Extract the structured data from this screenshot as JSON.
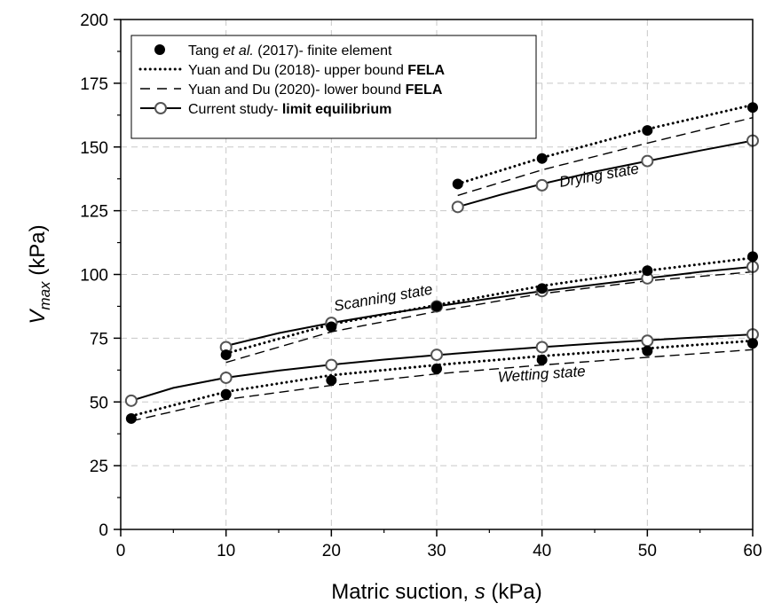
{
  "chart_data": {
    "type": "scatter",
    "xlabel": {
      "main": "Matric suction, ",
      "var": "s",
      "unit": " (kPa)"
    },
    "ylabel": {
      "main": "V",
      "sub": "max",
      "unit": " (kPa)"
    },
    "xlim": [
      0,
      60
    ],
    "ylim": [
      0,
      200
    ],
    "x_ticks": [
      "0",
      "10",
      "20",
      "30",
      "40",
      "50",
      "60"
    ],
    "x_tick_values": [
      0,
      10,
      20,
      30,
      40,
      50,
      60
    ],
    "y_ticks": [
      "0",
      "25",
      "50",
      "75",
      "100",
      "125",
      "150",
      "175",
      "200"
    ],
    "y_tick_values": [
      0,
      25,
      50,
      75,
      100,
      125,
      150,
      175,
      200
    ],
    "grid": true,
    "legend_position": "top-left",
    "legend": [
      {
        "style": "filled-marker",
        "parts": [
          {
            "t": "Tang "
          },
          {
            "t": "et al.",
            "i": true
          },
          {
            "t": " (2017)- finite element"
          }
        ]
      },
      {
        "style": "dotted-line",
        "parts": [
          {
            "t": "Yuan and Du (2018)- upper bound "
          },
          {
            "t": "FELA",
            "b": true
          }
        ]
      },
      {
        "style": "dashed-line",
        "parts": [
          {
            "t": "Yuan and Du (2020)- lower bound "
          },
          {
            "t": "FELA",
            "b": true
          }
        ]
      },
      {
        "style": "solid-line-open-marker",
        "parts": [
          {
            "t": "Current study- "
          },
          {
            "t": "limit equilibrium",
            "b": true
          }
        ]
      }
    ],
    "annotations": [
      {
        "text": "Drying state",
        "x": 45.5,
        "y": 137,
        "rotate": -10
      },
      {
        "text": "Scanning state",
        "x": 25,
        "y": 89,
        "rotate": -10
      },
      {
        "text": "Wetting state",
        "x": 40,
        "y": 59,
        "rotate": -4
      }
    ],
    "groups": [
      {
        "name": "Drying state",
        "tang": {
          "x": [
            32,
            40,
            50,
            60
          ],
          "y": [
            135.5,
            145.5,
            156.5,
            165.5
          ]
        },
        "upper": {
          "x": [
            32,
            40,
            50,
            60
          ],
          "y": [
            135.5,
            145.8,
            157,
            166.5
          ]
        },
        "lower": {
          "x": [
            32,
            40,
            50,
            60
          ],
          "y": [
            131,
            141,
            151.5,
            161.5
          ]
        },
        "current_markers": {
          "x": [
            32,
            40,
            50,
            60
          ],
          "y": [
            126.5,
            135,
            144.5,
            152.5
          ]
        },
        "current_line": {
          "x": [
            32,
            36,
            40,
            45,
            50,
            55,
            60
          ],
          "y": [
            126.5,
            131.2,
            135.5,
            140.3,
            144.5,
            148.6,
            152.5
          ]
        }
      },
      {
        "name": "Scanning state",
        "tang": {
          "x": [
            10,
            20,
            30,
            40,
            50,
            60
          ],
          "y": [
            68.5,
            79.5,
            87.5,
            94.5,
            101.5,
            107
          ]
        },
        "upper": {
          "x": [
            10,
            20,
            30,
            40,
            50,
            60
          ],
          "y": [
            69,
            80.5,
            88,
            95.5,
            101.5,
            106.5
          ]
        },
        "lower": {
          "x": [
            10,
            20,
            30,
            40,
            50,
            60
          ],
          "y": [
            65.5,
            77.5,
            85.5,
            92.5,
            97.5,
            101
          ]
        },
        "current_markers": {
          "x": [
            10,
            20,
            30,
            40,
            50,
            60
          ],
          "y": [
            71.5,
            81,
            87.5,
            93.5,
            98.5,
            103
          ]
        },
        "current_line": {
          "x": [
            10,
            15,
            20,
            25,
            30,
            35,
            40,
            45,
            50,
            55,
            60
          ],
          "y": [
            72,
            77,
            81,
            84.5,
            87.5,
            90.5,
            93.5,
            96,
            98.5,
            101,
            103
          ]
        }
      },
      {
        "name": "Wetting state",
        "tang": {
          "x": [
            1,
            10,
            20,
            30,
            40,
            50,
            60
          ],
          "y": [
            43.5,
            53,
            58.5,
            63,
            66.5,
            70,
            73
          ]
        },
        "upper": {
          "x": [
            1,
            10,
            20,
            30,
            40,
            50,
            60
          ],
          "y": [
            44.5,
            54,
            60.5,
            64.5,
            68,
            71,
            74
          ]
        },
        "lower": {
          "x": [
            1,
            10,
            20,
            30,
            40,
            50,
            60
          ],
          "y": [
            42.5,
            51,
            56.5,
            61,
            64.5,
            67.5,
            70.5
          ]
        },
        "current_markers": {
          "x": [
            1,
            10,
            20,
            30,
            40,
            50,
            60
          ],
          "y": [
            50.5,
            59.5,
            64.5,
            68.5,
            71.5,
            74,
            76.5
          ]
        },
        "current_line": {
          "x": [
            1,
            5,
            10,
            15,
            20,
            25,
            30,
            35,
            40,
            45,
            50,
            55,
            60
          ],
          "y": [
            50.5,
            55.5,
            59.5,
            62.3,
            64.6,
            66.6,
            68.4,
            70,
            71.5,
            72.9,
            74.2,
            75.4,
            76.5
          ]
        }
      }
    ],
    "colors": {
      "axis": "#000000",
      "grid": "#c8c8c8",
      "tang_marker": "#000000",
      "current_marker": "#555555",
      "lines": "#000000"
    }
  }
}
